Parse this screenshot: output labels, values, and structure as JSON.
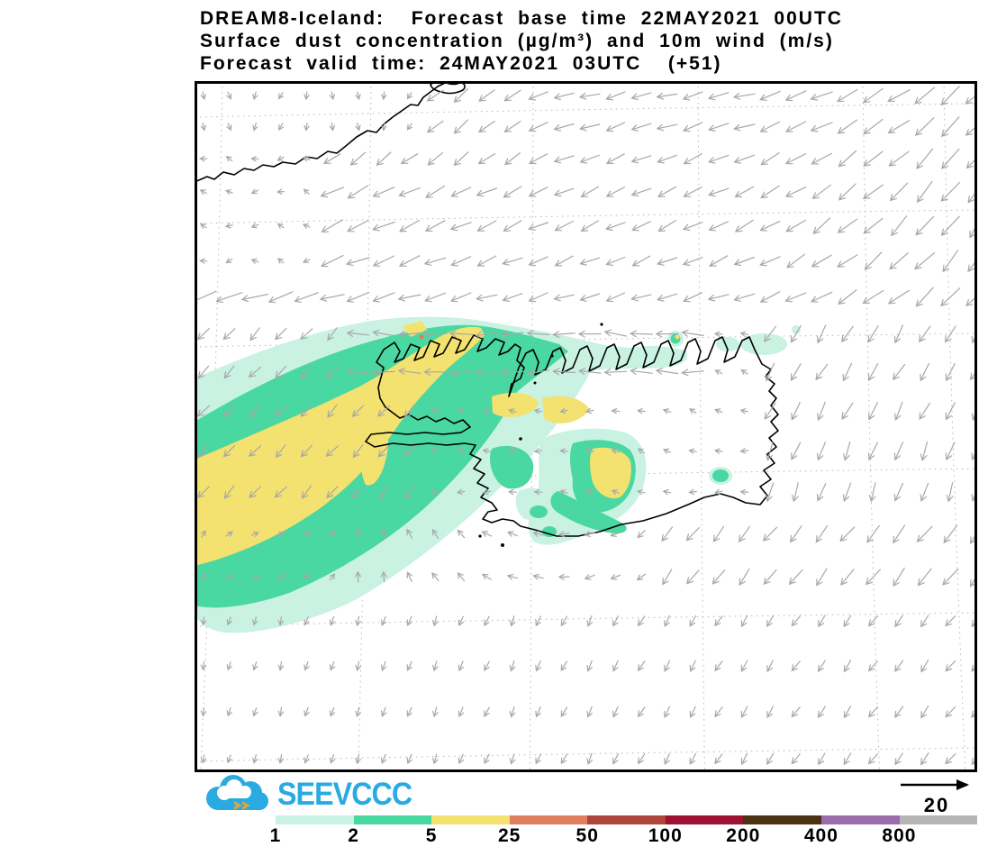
{
  "title": {
    "line1": "DREAM8-Iceland:  Forecast base time 22MAY2021 00UTC",
    "line2": "Surface dust concentration (µg/m³) and 10m wind (m/s)",
    "line3": "Forecast valid time: 24MAY2021 03UTC  (+51)"
  },
  "logo": {
    "text": "SEEVCCC",
    "brand_color": "#29abe2",
    "chevron_color": "#dfa63e"
  },
  "wind_reference": {
    "label": "20"
  },
  "colorbar": {
    "labels": [
      "1",
      "2",
      "5",
      "25",
      "50",
      "100",
      "200",
      "400",
      "800"
    ],
    "colors": [
      "#c9f2e3",
      "#49d7a2",
      "#f3e170",
      "#df7f5e",
      "#ae453a",
      "#9e1132",
      "#4a3213",
      "#9c6dad",
      "#b5b5b5"
    ]
  },
  "map": {
    "background": "#ffffff",
    "border_color": "#000000",
    "coastline_color": "#000000",
    "grid_color": "#b5b5b5",
    "wind_arrow_color": "#a8a8a8",
    "dust_fill_level1": "#c9f2e3",
    "dust_fill_level2": "#49d7a2",
    "dust_fill_level5": "#f3e170",
    "dust_fill_level25": "#df7f5e"
  },
  "chart_data": {
    "type": "heatmap",
    "title": "DREAM8-Iceland: Forecast base time 22MAY2021 00UTC",
    "subtitle": "Surface dust concentration (µg/m³) and 10m wind (m/s)",
    "valid_time": "24MAY2021 03UTC (+51)",
    "forecast_hour": 51,
    "legend_levels": [
      1,
      2,
      5,
      25,
      50,
      100,
      200,
      400,
      800
    ],
    "legend_colors": [
      "#c9f2e3",
      "#49d7a2",
      "#f3e170",
      "#df7f5e",
      "#ae453a",
      "#9e1132",
      "#4a3213",
      "#9c6dad",
      "#b5b5b5"
    ],
    "legend_position": "bottom",
    "wind_reference_ms": 20,
    "max_shown_concentration_level": 25,
    "visible_features": [
      "dust plume (1-25 µg/m³) stretching southwest from northwest Iceland over the ocean",
      "secondary dust patch (1-25 µg/m³) over south-central Iceland near the coast",
      "gray 10m wind vectors, predominantly northeasterly flow turning weak and cyclonic south of Iceland"
    ]
  }
}
